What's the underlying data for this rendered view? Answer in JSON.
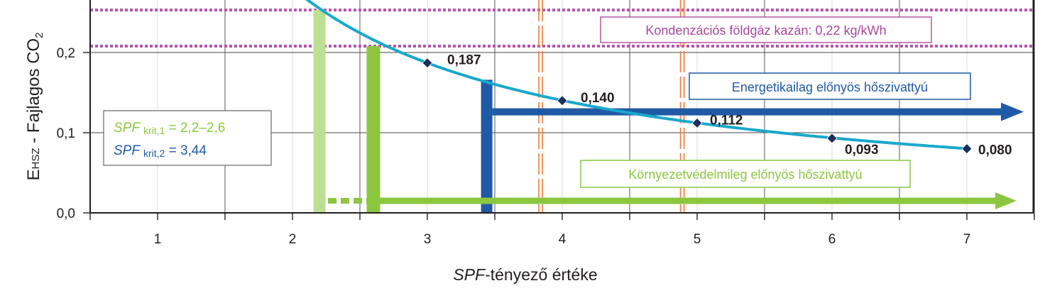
{
  "chart_data": {
    "type": "line",
    "title": "",
    "xlabel": {
      "italic": "SPF",
      "rest": "-tényező értéke"
    },
    "ylabel": {
      "main": "E",
      "sub": "HSZ",
      "rest": " - Fajlagos CO",
      "sub2": "2"
    },
    "xlim": [
      0.5,
      7.5
    ],
    "ylim": [
      0.0,
      0.26
    ],
    "x_ticks": [
      1,
      2,
      3,
      4,
      5,
      6,
      7
    ],
    "y_ticks": [
      {
        "value": 0.0,
        "label": "0,0"
      },
      {
        "value": 0.1,
        "label": "0,1"
      },
      {
        "value": 0.2,
        "label": "0,2"
      }
    ],
    "grid": true,
    "curve": {
      "color": "#1aa8cc",
      "coefficient": 0.561
    },
    "series": [
      {
        "marker": "diamond",
        "color": "#1a2f5e",
        "points": [
          {
            "x": 3,
            "y": 0.187,
            "label": "0,187"
          },
          {
            "x": 4,
            "y": 0.14,
            "label": "0,140"
          },
          {
            "x": 5,
            "y": 0.112,
            "label": "0,112"
          },
          {
            "x": 6,
            "y": 0.093,
            "label": "0,093"
          },
          {
            "x": 7,
            "y": 0.08,
            "label": "0,080"
          }
        ]
      }
    ],
    "reference_lines": [
      {
        "y": 0.208,
        "style": "dotted",
        "color": "#b554a8"
      },
      {
        "y": 0.253,
        "style": "dotted",
        "color": "#b554a8"
      }
    ],
    "vertical_lines": [
      {
        "x": 3.84,
        "style": "dashed",
        "color": "#f07a3a"
      },
      {
        "x": 4.89,
        "style": "dashed",
        "color": "#f07a3a"
      }
    ],
    "thresholds": [
      {
        "x": 2.2,
        "height": 0.253,
        "color": "#bddf94"
      },
      {
        "x": 2.6,
        "height": 0.208,
        "color": "#8cc63f"
      },
      {
        "x": 3.44,
        "height": 0.166,
        "color": "#1f5aa6"
      }
    ],
    "annotations": {
      "gas_boiler": "Kondenzációs földgáz kazán: 0,22 kg/kWh",
      "energy": "Energetikailag előnyös hőszivattyú",
      "environment": "Környezetvédelmileg előnyös hőszivattyú",
      "spf_krit1": {
        "italic": "SPF",
        "sub": "krit,1",
        "rest": " = 2,2–2,6"
      },
      "spf_krit2": {
        "italic": "SPF",
        "sub": "krit,2",
        "rest": " = 3,44"
      }
    },
    "colors": {
      "gas_text": "#a8489c",
      "energy": "#1f5aa6",
      "environment": "#8cc63f",
      "environment_light": "#bddf94"
    }
  }
}
